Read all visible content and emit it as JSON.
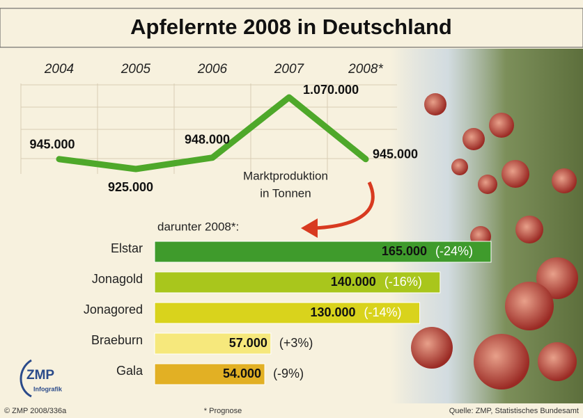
{
  "title": "Apfelernte 2008 in Deutschland",
  "chart_data": [
    {
      "type": "line",
      "categories": [
        "2004",
        "2005",
        "2006",
        "2007",
        "2008*"
      ],
      "values": [
        945000,
        925000,
        948000,
        1070000,
        945000
      ],
      "value_labels": [
        "945.000",
        "925.000",
        "948.000",
        "1.070.000",
        "945.000"
      ],
      "color": "#4ea82a",
      "annotation": [
        "Marktproduktion",
        "in Tonnen"
      ]
    },
    {
      "type": "bar",
      "orientation": "horizontal",
      "subtitle": "darunter 2008*:",
      "categories": [
        "Elstar",
        "Jonagold",
        "Jonagored",
        "Braeburn",
        "Gala"
      ],
      "values": [
        165000,
        140000,
        130000,
        57000,
        54000
      ],
      "value_labels": [
        "165.000",
        "140.000",
        "130.000",
        "57.000",
        "54.000"
      ],
      "changes": [
        -24,
        -16,
        -14,
        3,
        -9
      ],
      "change_labels": [
        "(-24%)",
        "(-16%)",
        "(-14%)",
        "(+3%)",
        "(-9%)"
      ],
      "colors": [
        "#3f9b2c",
        "#a9c61c",
        "#d9d31c",
        "#f6e87c",
        "#e2b024"
      ]
    }
  ],
  "logo": {
    "name": "ZMP",
    "sub": "Infografik"
  },
  "footer": {
    "left": "© ZMP 2008/336a",
    "center": "* Prognose",
    "right": "Quelle:  ZMP, Statistisches Bundesamt"
  }
}
